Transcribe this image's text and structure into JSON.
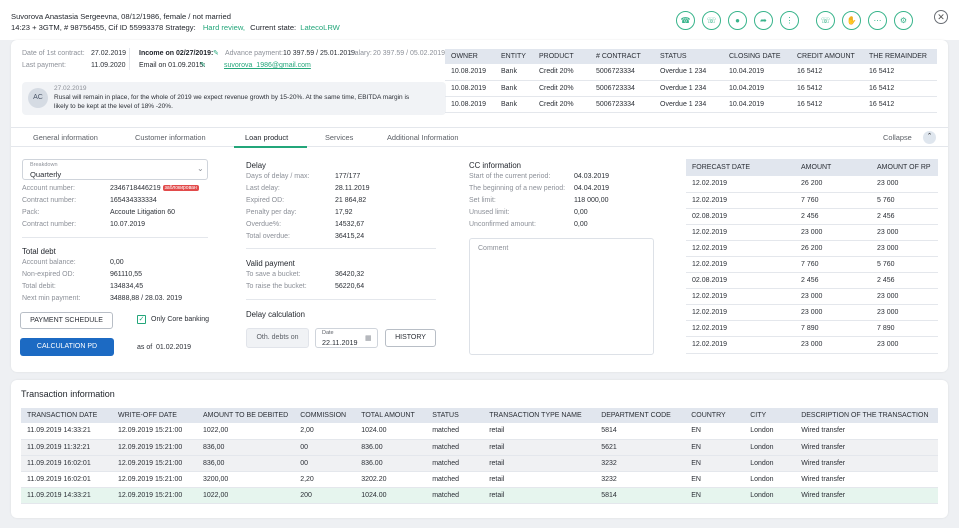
{
  "header": {
    "line1": "Suvorova Anastasia Sergeevna, 08/12/1986, female / not married",
    "line2_prefix": "14:23 + 3GTM, # 98756455, Cif ID 55993378 Strategy:",
    "strategy": "Hard review,",
    "state_label": "Current state:",
    "state_value": "LatecoLRW",
    "icons": [
      "phone-icon",
      "phone-hangup-icon",
      "microphone-icon",
      "phone-forward-icon",
      "dialpad-icon",
      "phone-hangup-2-icon",
      "hand-icon",
      "dots-icon",
      "gear-icon"
    ]
  },
  "summary": {
    "first_contract_label": "Date of 1st contract:",
    "first_contract_value": "27.02.2019",
    "last_payment_label": "Last payment:",
    "last_payment_value": "11.09.2020",
    "income_label": "Income on 02/27/2019:",
    "advance_label": "Advance payment:",
    "advance_value": "10 397.59 / 25.01.2019",
    "salary_label": "Salary:",
    "salary_value": "20 397.59 / 05.02.2019",
    "email_label": "Email on 01.09.2015:",
    "email_value": "suvorova_1986@gmail.com"
  },
  "comment": {
    "avatar": "AC",
    "date": "27.02.2019",
    "text_line1": "Rusal will remain in place, for the whole of 2019 we expect revenue growth by 15-20%. At the same time, EBITDA margin is",
    "text_line2": "likely to be kept at the level of 18% -20%."
  },
  "contracts": {
    "headers": [
      "OWNER",
      "ENTITY",
      "PRODUCT",
      "# CONTRACT",
      "STATUS",
      "CLOSING DATE",
      "CREDIT AMOUNT",
      "THE REMAINDER"
    ],
    "rows": [
      [
        "10.08.2019",
        "Bank",
        "Credit 20%",
        "5006723334",
        "Overdue 1 234",
        "10.04.2019",
        "16 5412",
        "16 5412"
      ],
      [
        "10.08.2019",
        "Bank",
        "Credit 20%",
        "5006723334",
        "Overdue 1 234",
        "10.04.2019",
        "16 5412",
        "16 5412"
      ],
      [
        "10.08.2019",
        "Bank",
        "Credit 20%",
        "5006723334",
        "Overdue 1 234",
        "10.04.2019",
        "16 5412",
        "16 5412"
      ]
    ]
  },
  "tabs": {
    "items": [
      "General information",
      "Customer information",
      "Loan product",
      "Services",
      "Additional Information"
    ],
    "collapse": "Collapse"
  },
  "loan": {
    "breakdown_label": "Breakdown",
    "breakdown_value": "Quarterly",
    "account_number_label": "Account number:",
    "account_number_value": "2346718446219",
    "blocked_badge": "заблокирован",
    "contract_number_label": "Contract number:",
    "contract_number_value": "165434333334",
    "pack_label": "Pack:",
    "pack_value": "Accoute Litigation 60",
    "contract_number2_label": "Contract number:",
    "contract_number2_value": "10.07.2019",
    "total_debt_title": "Total debt",
    "account_balance_label": "Account balance:",
    "account_balance_value": "0,00",
    "non_expired_label": "Non-expired OD:",
    "non_expired_value": "961110,55",
    "total_debit_label": "Total debit:",
    "total_debit_value": "134834,45",
    "next_min_label": "Next min payment:",
    "next_min_value": "34888,88 / 28.03. 2019",
    "payment_schedule": "PAYMENT SCHEDULE",
    "only_core": "Only Core banking",
    "calculation_pd": "CALCULATION PD",
    "as_of": "as of",
    "as_of_date": "01.02.2019"
  },
  "delay": {
    "title": "Delay",
    "rows": [
      {
        "label": "Days of delay / max:",
        "value": "177/177"
      },
      {
        "label": "Last delay:",
        "value": "28.11.2019"
      },
      {
        "label": "Expired OD:",
        "value": "21 864,82"
      },
      {
        "label": "Penalty per day:",
        "value": "17,92"
      },
      {
        "label": "Overdue%:",
        "value": "14532,67"
      },
      {
        "label": "Total overdue:",
        "value": "36415,24"
      }
    ],
    "valid_title": "Valid payment",
    "valid_rows": [
      {
        "label": "To save a bucket:",
        "value": "36420,32"
      },
      {
        "label": "To raise the bucket:",
        "value": "56220,64"
      }
    ],
    "calc_title": "Delay calculation",
    "oth_debts": "Oth. debts on",
    "date_label": "Date",
    "date_value": "22.11.2019",
    "history": "HISTORY"
  },
  "cc": {
    "title": "CC information",
    "rows": [
      {
        "label": "Start of the current period:",
        "value": "04.03.2019"
      },
      {
        "label": "The beginning of a new period:",
        "value": "04.04.2019"
      },
      {
        "label": "Set limit:",
        "value": "118 000,00"
      },
      {
        "label": "Unused limit:",
        "value": "0,00"
      },
      {
        "label": "Unconfirmed amount:",
        "value": "0,00"
      }
    ],
    "comment_placeholder": "Comment"
  },
  "forecast": {
    "headers": [
      "FORECAST DATE",
      "AMOUNT",
      "AMOUNT OF RP"
    ],
    "rows": [
      [
        "12.02.2019",
        "26 200",
        "23 000"
      ],
      [
        "12.02.2019",
        "7 760",
        "5 760"
      ],
      [
        "02.08.2019",
        "2 456",
        "2 456"
      ],
      [
        "12.02.2019",
        "23 000",
        "23 000"
      ],
      [
        "12.02.2019",
        "26 200",
        "23 000"
      ],
      [
        "12.02.2019",
        "7 760",
        "5 760"
      ],
      [
        "02.08.2019",
        "2 456",
        "2 456"
      ],
      [
        "12.02.2019",
        "23 000",
        "23 000"
      ],
      [
        "12.02.2019",
        "23 000",
        "23 000"
      ],
      [
        "12.02.2019",
        "7 890",
        "7 890"
      ],
      [
        "12.02.2019",
        "23 000",
        "23 000"
      ]
    ]
  },
  "transactions": {
    "title": "Transaction information",
    "headers": [
      "TRANSACTION DATE",
      "WRITE-OFF DATE",
      "AMOUNT TO BE DEBITED",
      "COMMISSION",
      "TOTAL AMOUNT",
      "STATUS",
      "TRANSACTION TYPE NAME",
      "DEPARTMENT CODE",
      "COUNTRY",
      "CITY",
      "DESCRIPTION OF THE TRANSACTION"
    ],
    "rows": [
      [
        "11.09.2019 14:33:21",
        "12.09.2019 15:21:00",
        "1022,00",
        "2,00",
        "1024.00",
        "matched",
        "retail",
        "5814",
        "EN",
        "London",
        "Wired transfer"
      ],
      [
        "11.09.2019 11:32:21",
        "12.09.2019 15:21:00",
        "836,00",
        "00",
        "836.00",
        "matched",
        "retail",
        "5621",
        "EN",
        "London",
        "Wired transfer"
      ],
      [
        "11.09.2019 16:02:01",
        "12.09.2019 15:21:00",
        "836,00",
        "00",
        "836.00",
        "matched",
        "retail",
        "3232",
        "EN",
        "London",
        "Wired transfer"
      ],
      [
        "11.09.2019 16:02:01",
        "12.09.2019 15:21:00",
        "3200,00",
        "2,20",
        "3202.20",
        "matched",
        "retail",
        "3232",
        "EN",
        "London",
        "Wired transfer"
      ],
      [
        "11.09.2019 14:33:21",
        "12.09.2019 15:21:00",
        "1022,00",
        "200",
        "1024.00",
        "matched",
        "retail",
        "5814",
        "EN",
        "London",
        "Wired transfer"
      ]
    ],
    "row_colors": [
      "#ffffff",
      "#f0f1f3",
      "#f0f1f3",
      "#ffffff",
      "#e6f5ee"
    ],
    "accent": "#23a67a"
  }
}
